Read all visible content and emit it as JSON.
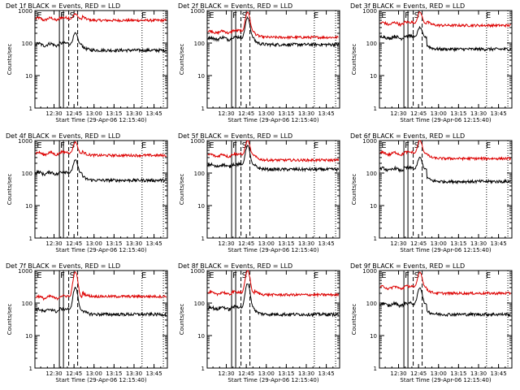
{
  "figure": {
    "footer_xlabel": "Start Time (29-Apr-06 12:15:40)",
    "ylabel": "Counts/sec",
    "colors": {
      "events": "#000000",
      "lld": "#dd0000",
      "axes": "#000000",
      "background": "#ffffff"
    }
  },
  "chart_data": [
    {
      "type": "line",
      "title": "Det 1f BLACK = Events, RED = LLD",
      "xlabel": "Start Time (29-Apr-06 12:15:40)",
      "ylabel": "Counts/sec",
      "yscale": "log",
      "ylim": [
        1,
        1000
      ],
      "yticks": [
        "1",
        "10",
        "100",
        "1000"
      ],
      "xticks": [
        "12:30",
        "12:45",
        "13:00",
        "13:15",
        "13:30",
        "13:45"
      ],
      "xrange": [
        "12:15:40",
        "13:55"
      ],
      "markers": {
        "E1": "12:17",
        "F": "12:34",
        "S": "12:41",
        "E2": "13:36"
      },
      "series": [
        {
          "name": "BLACK = Events",
          "levels": {
            "pre": 90,
            "post": 60,
            "peak": 200
          }
        },
        {
          "name": "RED = LLD",
          "levels": {
            "pre": 550,
            "post": 500,
            "peak": 800
          }
        }
      ]
    },
    {
      "type": "line",
      "title": "Det 2f BLACK = Events, RED = LLD",
      "xlabel": "Start Time (29-Apr-06 12:15:40)",
      "ylabel": "Counts/sec",
      "yscale": "log",
      "ylim": [
        1,
        1000
      ],
      "yticks": [
        "1",
        "10",
        "100",
        "1000"
      ],
      "xticks": [
        "12:30",
        "12:45",
        "13:00",
        "13:15",
        "13:30",
        "13:45"
      ],
      "xrange": [
        "12:15:40",
        "13:55"
      ],
      "markers": {
        "E1": "12:17",
        "F": "12:34",
        "S": "12:41",
        "E2": "13:36"
      },
      "series": [
        {
          "name": "BLACK = Events",
          "levels": {
            "pre": 140,
            "post": 90,
            "peak": 600
          }
        },
        {
          "name": "RED = LLD",
          "levels": {
            "pre": 220,
            "post": 150,
            "peak": 900
          }
        }
      ]
    },
    {
      "type": "line",
      "title": "Det 3f BLACK = Events, RED = LLD",
      "xlabel": "Start Time (29-Apr-06 12:15:40)",
      "ylabel": "Counts/sec",
      "yscale": "log",
      "ylim": [
        1,
        1000
      ],
      "yticks": [
        "1",
        "10",
        "100",
        "1000"
      ],
      "xticks": [
        "12:30",
        "12:45",
        "13:00",
        "13:15",
        "13:30",
        "13:45"
      ],
      "xrange": [
        "12:15:40",
        "13:55"
      ],
      "markers": {
        "E1": "12:17",
        "F": "12:34",
        "S": "12:41",
        "E2": "13:36"
      },
      "series": [
        {
          "name": "BLACK = Events",
          "levels": {
            "pre": 150,
            "post": 65,
            "peak": 300
          }
        },
        {
          "name": "RED = LLD",
          "levels": {
            "pre": 400,
            "post": 350,
            "peak": 900
          }
        }
      ]
    },
    {
      "type": "line",
      "title": "Det 4f BLACK = Events, RED = LLD",
      "xlabel": "Start Time (29-Apr-06 12:15:40)",
      "ylabel": "Counts/sec",
      "yscale": "log",
      "ylim": [
        1,
        1000
      ],
      "yticks": [
        "1",
        "10",
        "100",
        "1000"
      ],
      "xticks": [
        "12:30",
        "12:45",
        "13:00",
        "13:15",
        "13:30",
        "13:45"
      ],
      "xrange": [
        "12:15:40",
        "13:55"
      ],
      "markers": {
        "E1": "12:17",
        "F": "12:34",
        "S": "12:41",
        "E2": "13:36"
      },
      "series": [
        {
          "name": "BLACK = Events",
          "levels": {
            "pre": 100,
            "post": 60,
            "peak": 250
          }
        },
        {
          "name": "RED = LLD",
          "levels": {
            "pre": 400,
            "post": 350,
            "peak": 900
          }
        }
      ]
    },
    {
      "type": "line",
      "title": "Det 5f BLACK = Events, RED = LLD",
      "xlabel": "Start Time (29-Apr-06 12:15:40)",
      "ylabel": "Counts/sec",
      "yscale": "log",
      "ylim": [
        1,
        1000
      ],
      "yticks": [
        "1",
        "10",
        "100",
        "1000"
      ],
      "xticks": [
        "12:30",
        "12:45",
        "13:00",
        "13:15",
        "13:30",
        "13:45"
      ],
      "xrange": [
        "12:15:40",
        "13:55"
      ],
      "markers": {
        "E1": "12:17",
        "F": "12:34",
        "S": "12:41",
        "E2": "13:36"
      },
      "series": [
        {
          "name": "BLACK = Events",
          "levels": {
            "pre": 170,
            "post": 130,
            "peak": 700
          }
        },
        {
          "name": "RED = LLD",
          "levels": {
            "pre": 350,
            "post": 250,
            "peak": 1000
          }
        }
      ]
    },
    {
      "type": "line",
      "title": "Det 6f BLACK = Events, RED = LLD",
      "xlabel": "Start Time (29-Apr-06 12:15:40)",
      "ylabel": "Counts/sec",
      "yscale": "log",
      "ylim": [
        1,
        1000
      ],
      "yticks": [
        "1",
        "10",
        "100",
        "1000"
      ],
      "xticks": [
        "12:30",
        "12:45",
        "13:00",
        "13:15",
        "13:30",
        "13:45"
      ],
      "xrange": [
        "12:15:40",
        "13:55"
      ],
      "markers": {
        "E1": "12:17",
        "F": "12:34",
        "S": "12:41",
        "E2": "13:36"
      },
      "series": [
        {
          "name": "BLACK = Events",
          "levels": {
            "pre": 130,
            "post": 55,
            "peak": 300
          }
        },
        {
          "name": "RED = LLD",
          "levels": {
            "pre": 400,
            "post": 280,
            "peak": 1000
          }
        }
      ]
    },
    {
      "type": "line",
      "title": "Det 7f BLACK = Events, RED = LLD",
      "xlabel": "Start Time (29-Apr-06 12:15:40)",
      "ylabel": "Counts/sec",
      "yscale": "log",
      "ylim": [
        1,
        1000
      ],
      "yticks": [
        "1",
        "10",
        "100",
        "1000"
      ],
      "xticks": [
        "12:30",
        "12:45",
        "13:00",
        "13:15",
        "13:30",
        "13:45"
      ],
      "xrange": [
        "12:15:40",
        "13:55"
      ],
      "markers": {
        "E1": "12:17",
        "F": "12:34",
        "S": "12:41",
        "E2": "13:36"
      },
      "series": [
        {
          "name": "BLACK = Events",
          "levels": {
            "pre": 60,
            "post": 45,
            "peak": 300
          }
        },
        {
          "name": "RED = LLD",
          "levels": {
            "pre": 150,
            "post": 160,
            "peak": 900
          }
        }
      ]
    },
    {
      "type": "line",
      "title": "Det 8f BLACK = Events, RED = LLD",
      "xlabel": "Start Time (29-Apr-06 12:15:40)",
      "ylabel": "Counts/sec",
      "yscale": "log",
      "ylim": [
        1,
        1000
      ],
      "yticks": [
        "1",
        "10",
        "100",
        "1000"
      ],
      "xticks": [
        "12:30",
        "12:45",
        "13:00",
        "13:15",
        "13:30",
        "13:45"
      ],
      "xrange": [
        "12:15:40",
        "13:55"
      ],
      "markers": {
        "E1": "12:17",
        "F": "12:34",
        "S": "12:41",
        "E2": "13:36"
      },
      "series": [
        {
          "name": "BLACK = Events",
          "levels": {
            "pre": 70,
            "post": 45,
            "peak": 400
          }
        },
        {
          "name": "RED = LLD",
          "levels": {
            "pre": 200,
            "post": 180,
            "peak": 1000
          }
        }
      ]
    },
    {
      "type": "line",
      "title": "Det 9f BLACK = Events, RED = LLD",
      "xlabel": "Start Time (29-Apr-06 12:15:40)",
      "ylabel": "Counts/sec",
      "yscale": "log",
      "ylim": [
        1,
        1000
      ],
      "yticks": [
        "1",
        "10",
        "100",
        "1000"
      ],
      "xticks": [
        "12:30",
        "12:45",
        "13:00",
        "13:15",
        "13:30",
        "13:45"
      ],
      "xrange": [
        "12:15:40",
        "13:55"
      ],
      "markers": {
        "E1": "12:17",
        "F": "12:34",
        "S": "12:41",
        "E2": "13:36"
      },
      "series": [
        {
          "name": "BLACK = Events",
          "levels": {
            "pre": 90,
            "post": 45,
            "peak": 300
          }
        },
        {
          "name": "RED = LLD",
          "levels": {
            "pre": 300,
            "post": 200,
            "peak": 900
          }
        }
      ]
    }
  ]
}
